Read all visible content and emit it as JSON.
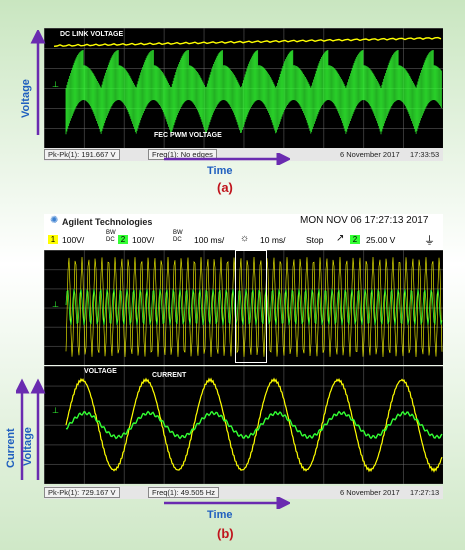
{
  "panel_a": {
    "annotations": {
      "dc_link": "DC LINK VOLTAGE",
      "fec_pwm": "FEC PWM VOLTAGE"
    },
    "axis": {
      "y": "Voltage",
      "x": "Time"
    },
    "status": {
      "pk_pk": "Pk-Pk(1): 191.667 V",
      "freq": "Freq(1): No edges",
      "date": "6 November 2017",
      "time": "17:33:53"
    },
    "caption": "(a)"
  },
  "panel_b": {
    "header": {
      "brand": "Agilent Technologies",
      "datetime": "MON NOV 06 17:27:13 2017",
      "ch1_num": "1",
      "ch1_scale": "100V/",
      "ch2_num": "2",
      "ch2_scale": "100V/",
      "bw": "BW",
      "dc": "DC",
      "timebase": "100 ms/",
      "zoom_timebase": "10 ms/",
      "run_state": "Stop",
      "trig_ch": "2",
      "trig_level": "25.00 V"
    },
    "annotations": {
      "voltage": "VOLTAGE",
      "current": "CURRENT"
    },
    "axis": {
      "y1": "Current",
      "y2": "Voltage",
      "x": "Time"
    },
    "status": {
      "pk_pk": "Pk-Pk(1): 729.167 V",
      "freq": "Freq(1): 49.505 Hz",
      "date": "6 November 2017",
      "time": "17:27:13"
    },
    "caption": "(b)"
  },
  "colors": {
    "ch1": "#ffff00",
    "ch2": "#33ff33",
    "axis_label": "#1f5fbf",
    "arrow": "#6a2bb0",
    "caption": "#c0141c"
  }
}
